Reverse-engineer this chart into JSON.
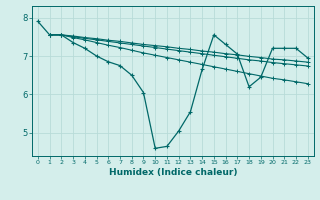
{
  "xlabel": "Humidex (Indice chaleur)",
  "bg_color": "#d4eeeb",
  "line_color": "#006868",
  "grid_color": "#b8dbd8",
  "xlim": [
    -0.5,
    23.5
  ],
  "ylim": [
    4.4,
    8.3
  ],
  "yticks": [
    5,
    6,
    7,
    8
  ],
  "xticks": [
    0,
    1,
    2,
    3,
    4,
    5,
    6,
    7,
    8,
    9,
    10,
    11,
    12,
    13,
    14,
    15,
    16,
    17,
    18,
    19,
    20,
    21,
    22,
    23
  ],
  "series1": [
    [
      0,
      7.9
    ],
    [
      1,
      7.55
    ],
    [
      2,
      7.55
    ],
    [
      3,
      7.35
    ],
    [
      4,
      7.2
    ],
    [
      5,
      7.0
    ],
    [
      6,
      6.85
    ],
    [
      7,
      6.75
    ],
    [
      8,
      6.5
    ],
    [
      9,
      6.05
    ],
    [
      10,
      4.6
    ],
    [
      11,
      4.65
    ],
    [
      12,
      5.05
    ],
    [
      13,
      5.55
    ],
    [
      14,
      6.65
    ],
    [
      15,
      7.55
    ],
    [
      16,
      7.3
    ],
    [
      17,
      7.05
    ],
    [
      18,
      6.2
    ],
    [
      19,
      6.45
    ],
    [
      20,
      7.2
    ],
    [
      21,
      7.2
    ],
    [
      22,
      7.2
    ],
    [
      23,
      6.95
    ]
  ],
  "series2": [
    [
      1,
      7.55
    ],
    [
      2,
      7.55
    ],
    [
      3,
      7.48
    ],
    [
      4,
      7.42
    ],
    [
      5,
      7.35
    ],
    [
      6,
      7.28
    ],
    [
      7,
      7.22
    ],
    [
      8,
      7.15
    ],
    [
      9,
      7.08
    ],
    [
      10,
      7.02
    ],
    [
      11,
      6.96
    ],
    [
      12,
      6.9
    ],
    [
      13,
      6.84
    ],
    [
      14,
      6.78
    ],
    [
      15,
      6.72
    ],
    [
      16,
      6.66
    ],
    [
      17,
      6.6
    ],
    [
      18,
      6.54
    ],
    [
      19,
      6.48
    ],
    [
      20,
      6.42
    ],
    [
      21,
      6.38
    ],
    [
      22,
      6.33
    ],
    [
      23,
      6.28
    ]
  ],
  "series3": [
    [
      1,
      7.55
    ],
    [
      2,
      7.55
    ],
    [
      3,
      7.52
    ],
    [
      4,
      7.48
    ],
    [
      5,
      7.45
    ],
    [
      6,
      7.41
    ],
    [
      7,
      7.38
    ],
    [
      8,
      7.34
    ],
    [
      9,
      7.3
    ],
    [
      10,
      7.27
    ],
    [
      11,
      7.24
    ],
    [
      12,
      7.2
    ],
    [
      13,
      7.17
    ],
    [
      14,
      7.13
    ],
    [
      15,
      7.1
    ],
    [
      16,
      7.06
    ],
    [
      17,
      7.03
    ],
    [
      18,
      6.99
    ],
    [
      19,
      6.96
    ],
    [
      20,
      6.92
    ],
    [
      21,
      6.9
    ],
    [
      22,
      6.87
    ],
    [
      23,
      6.84
    ]
  ],
  "series4": [
    [
      1,
      7.55
    ],
    [
      2,
      7.55
    ],
    [
      3,
      7.5
    ],
    [
      4,
      7.46
    ],
    [
      5,
      7.42
    ],
    [
      6,
      7.38
    ],
    [
      7,
      7.34
    ],
    [
      8,
      7.3
    ],
    [
      9,
      7.26
    ],
    [
      10,
      7.22
    ],
    [
      11,
      7.18
    ],
    [
      12,
      7.14
    ],
    [
      13,
      7.1
    ],
    [
      14,
      7.06
    ],
    [
      15,
      7.02
    ],
    [
      16,
      6.98
    ],
    [
      17,
      6.94
    ],
    [
      18,
      6.9
    ],
    [
      19,
      6.87
    ],
    [
      20,
      6.83
    ],
    [
      21,
      6.8
    ],
    [
      22,
      6.77
    ],
    [
      23,
      6.74
    ]
  ]
}
